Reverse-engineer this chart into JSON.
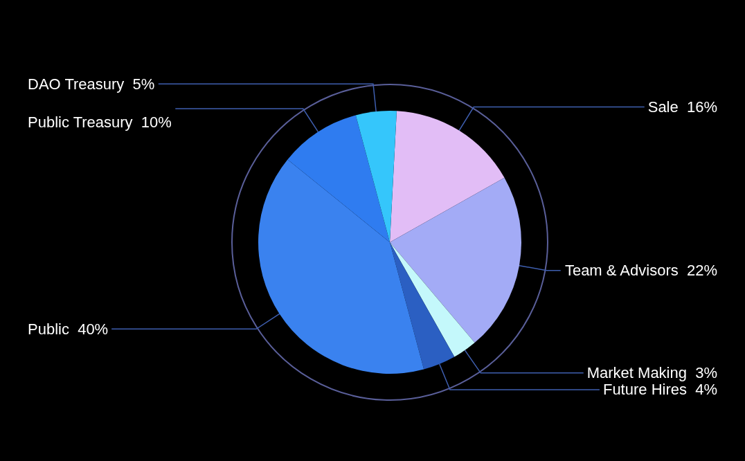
{
  "chart_data": {
    "type": "pie",
    "categories": [
      "Sale",
      "Team & Advisors",
      "Market Making",
      "Future Hires",
      "Public",
      "Public Treasury",
      "DAO Treasury"
    ],
    "values": [
      16,
      22,
      3,
      4,
      40,
      10,
      5
    ],
    "value_labels": [
      "16%",
      "22%",
      "3%",
      "4%",
      "40%",
      "10%",
      "5%"
    ],
    "colors": [
      "#e2bdf6",
      "#a3abf6",
      "#c4f8fb",
      "#2b5fc2",
      "#3a82ef",
      "#2f7cf0",
      "#35c6fb"
    ],
    "legend": false
  }
}
